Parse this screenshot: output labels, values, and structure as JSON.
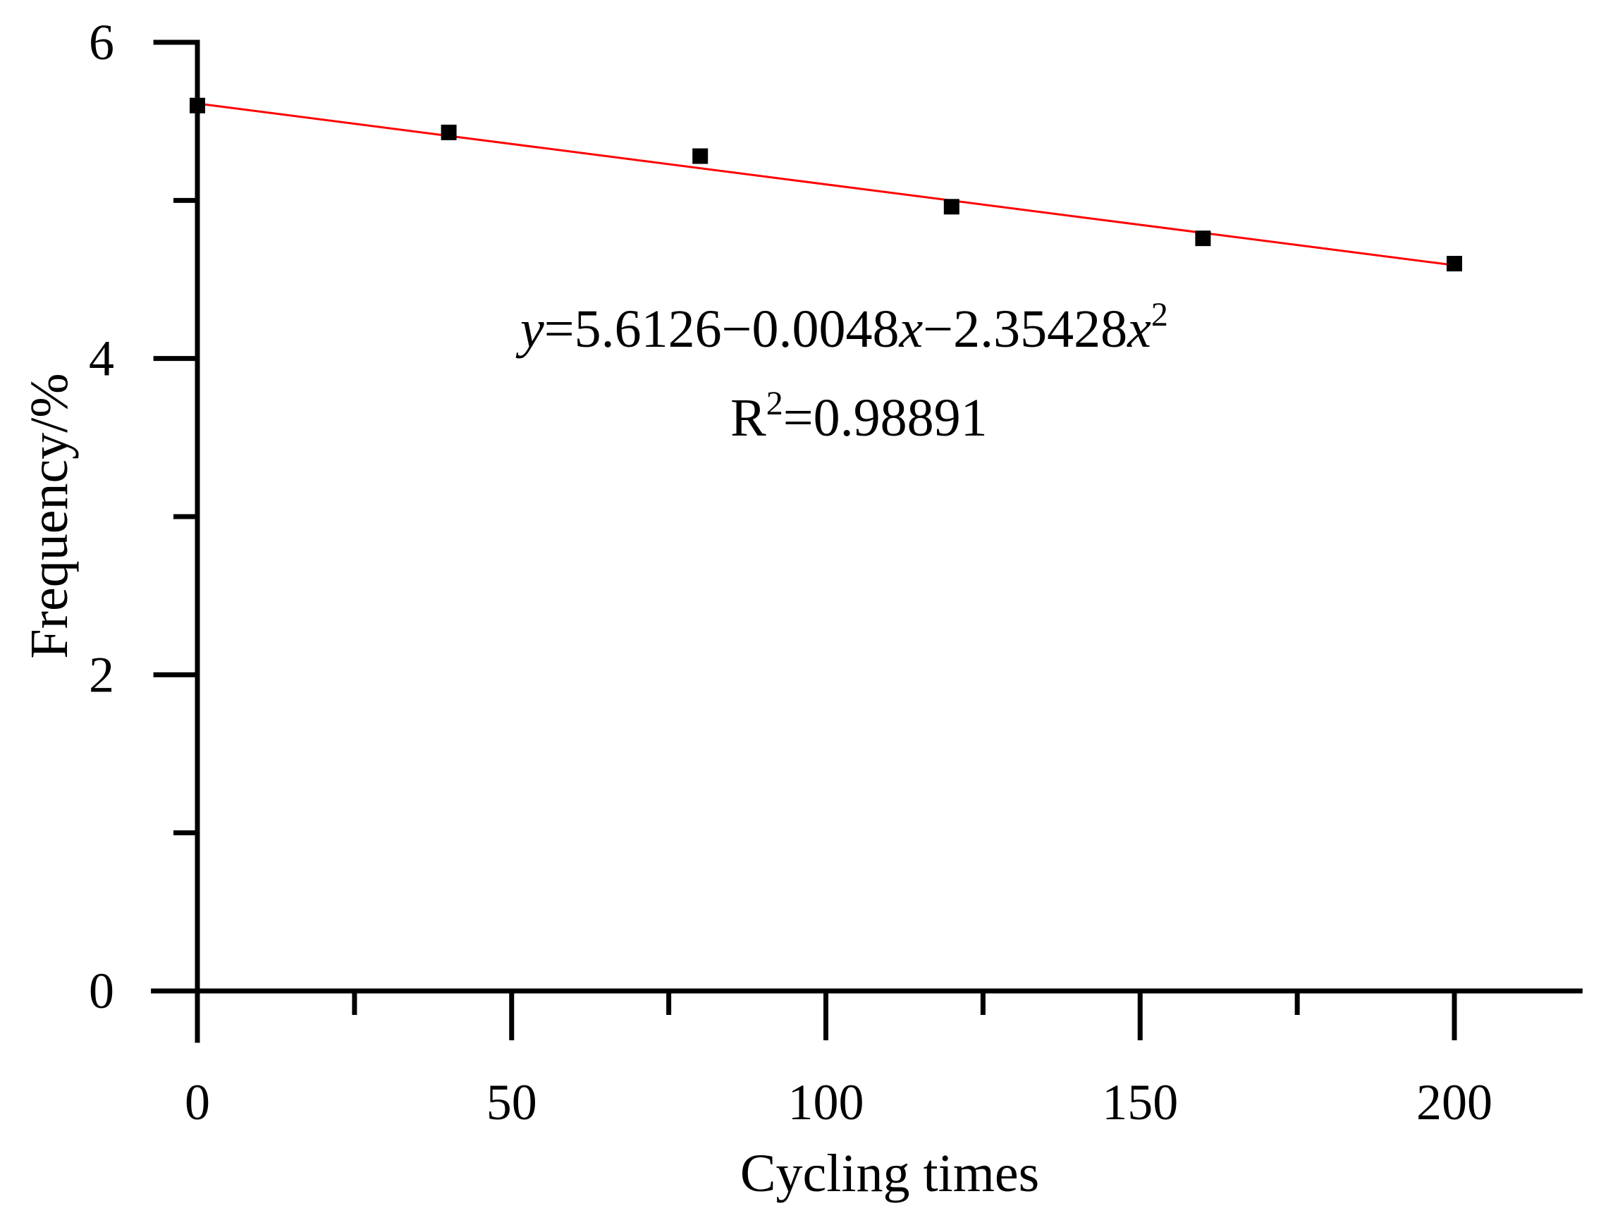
{
  "chart_data": {
    "type": "scatter",
    "title": "",
    "xlabel": "Cycling times",
    "ylabel": "Frequency/%",
    "xlim": [
      -7,
      220
    ],
    "ylim": [
      0,
      6
    ],
    "x_ticks": [
      0,
      50,
      100,
      150,
      200
    ],
    "x_minor_ticks": [
      25,
      75,
      125,
      175
    ],
    "y_ticks": [
      0,
      2,
      4,
      6
    ],
    "y_minor_ticks": [
      1,
      3,
      5
    ],
    "grid": false,
    "series": [
      {
        "name": "Frequency",
        "marker": "square",
        "color": "#000000",
        "x": [
          0,
          40,
          80,
          120,
          160,
          200
        ],
        "y": [
          5.6,
          5.43,
          5.28,
          4.96,
          4.76,
          4.6
        ]
      }
    ],
    "fit": {
      "color": "#ff0000",
      "x_range": [
        0,
        200
      ],
      "y_start": 5.6126,
      "y_end": 4.59
    },
    "annotation": {
      "eq_y": "y",
      "eq_part1": "=5.6126−0.0048",
      "eq_x1": "x",
      "eq_part2": "−2.35428",
      "eq_x2": "x",
      "eq_sup": "2",
      "r2_R": "R",
      "r2_sup": "2",
      "r2_value": "=0.98891"
    }
  }
}
